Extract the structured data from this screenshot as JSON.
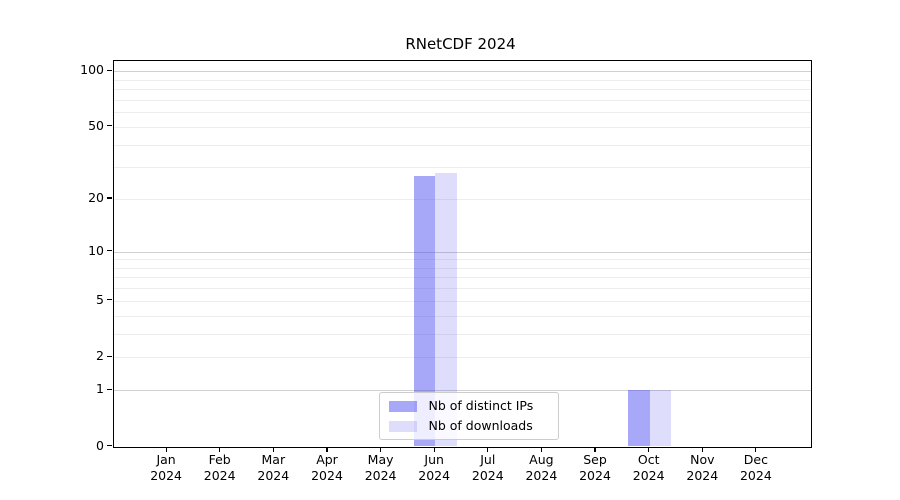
{
  "chart_data": {
    "type": "bar",
    "title": "RNetCDF 2024",
    "categories": [
      "Jan 2024",
      "Feb 2024",
      "Mar 2024",
      "Apr 2024",
      "May 2024",
      "Jun 2024",
      "Jul 2024",
      "Aug 2024",
      "Sep 2024",
      "Oct 2024",
      "Nov 2024",
      "Dec 2024"
    ],
    "series": [
      {
        "name": "Nb of distinct IPs",
        "color": "rgba(70,70,240,0.47)",
        "values": [
          0,
          0,
          0,
          0,
          0,
          27,
          0,
          0,
          0,
          1,
          0,
          0
        ]
      },
      {
        "name": "Nb of downloads",
        "color": "rgba(70,70,240,0.18)",
        "values": [
          0,
          0,
          0,
          0,
          0,
          28,
          0,
          0,
          0,
          1,
          0,
          0
        ]
      }
    ],
    "xlabel": "",
    "ylabel": "",
    "yscale": "log1p",
    "ylim": [
      0,
      113.6
    ],
    "yticks": [
      0,
      1,
      2,
      5,
      10,
      20,
      50,
      100
    ],
    "major_gridlines": [
      1,
      10,
      100
    ],
    "minor_gridlines": [
      2,
      3,
      4,
      5,
      6,
      7,
      8,
      9,
      20,
      30,
      40,
      50,
      60,
      70,
      80,
      90
    ],
    "grid": true,
    "legend_position": "lower center",
    "bar_group_width_ratio": 0.8,
    "colors": {
      "axis": "#000000",
      "major_grid": "#d0d0d0",
      "minor_grid": "#ededed",
      "legend_border": "#cccccc"
    }
  }
}
